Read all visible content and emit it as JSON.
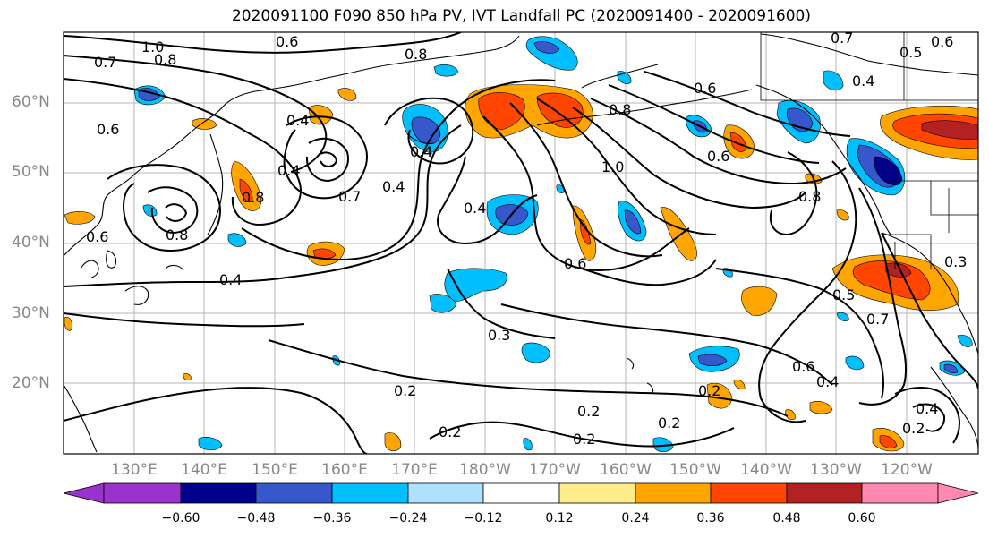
{
  "title": "2020091100 F090 850 hPa PV, IVT Landfall PC (2020091400 - 2020091600)",
  "lat_labels": [
    "60°N",
    "50°N",
    "40°N",
    "30°N",
    "20°N"
  ],
  "lon_labels": [
    "130°E",
    "140°E",
    "150°E",
    "160°E",
    "170°E",
    "180°W",
    "170°W",
    "160°W",
    "150°W",
    "140°W",
    "130°W",
    "120°W"
  ],
  "contour_labels": [
    "1.0",
    "0.8",
    "0.7",
    "0.6",
    "0.6",
    "0.8",
    "0.7",
    "0.5",
    "0.4",
    "0.6",
    "0.6",
    "0.8",
    "0.6",
    "0.4",
    "0.8",
    "1.0",
    "0.6",
    "0.4",
    "0.8",
    "0.4",
    "0.7",
    "0.8",
    "0.6",
    "0.4",
    "0.4",
    "0.4",
    "0.3",
    "0.3",
    "0.5",
    "0.7",
    "0.6",
    "0.2",
    "0.2",
    "0.2",
    "0.2",
    "0.2",
    "0.4",
    "0.2",
    "0.4",
    "0.2"
  ],
  "colorbar": {
    "ticks": [
      "−0.60",
      "−0.48",
      "−0.36",
      "−0.24",
      "−0.12",
      "0.12",
      "0.24",
      "0.36",
      "0.48",
      "0.60"
    ],
    "colors": [
      "#9a32cd",
      "#00008b",
      "#3658cc",
      "#00bfff",
      "#b0e0ff",
      "#ffffff",
      "#ffec8b",
      "#ffa500",
      "#ff4500",
      "#b22222",
      "#ff88b0"
    ]
  },
  "colors": {
    "purple": "#9a32cd",
    "navy": "#00008b",
    "blue": "#3658cc",
    "sky": "#00bfff",
    "light_blue": "#b0e0ff",
    "yellow": "#ffec8b",
    "orange": "#ffa500",
    "red_orange": "#ff4500",
    "dark_red": "#b22222",
    "pink": "#ff88b0",
    "grid": "#b0b0b0",
    "label_gray": "#888888"
  }
}
